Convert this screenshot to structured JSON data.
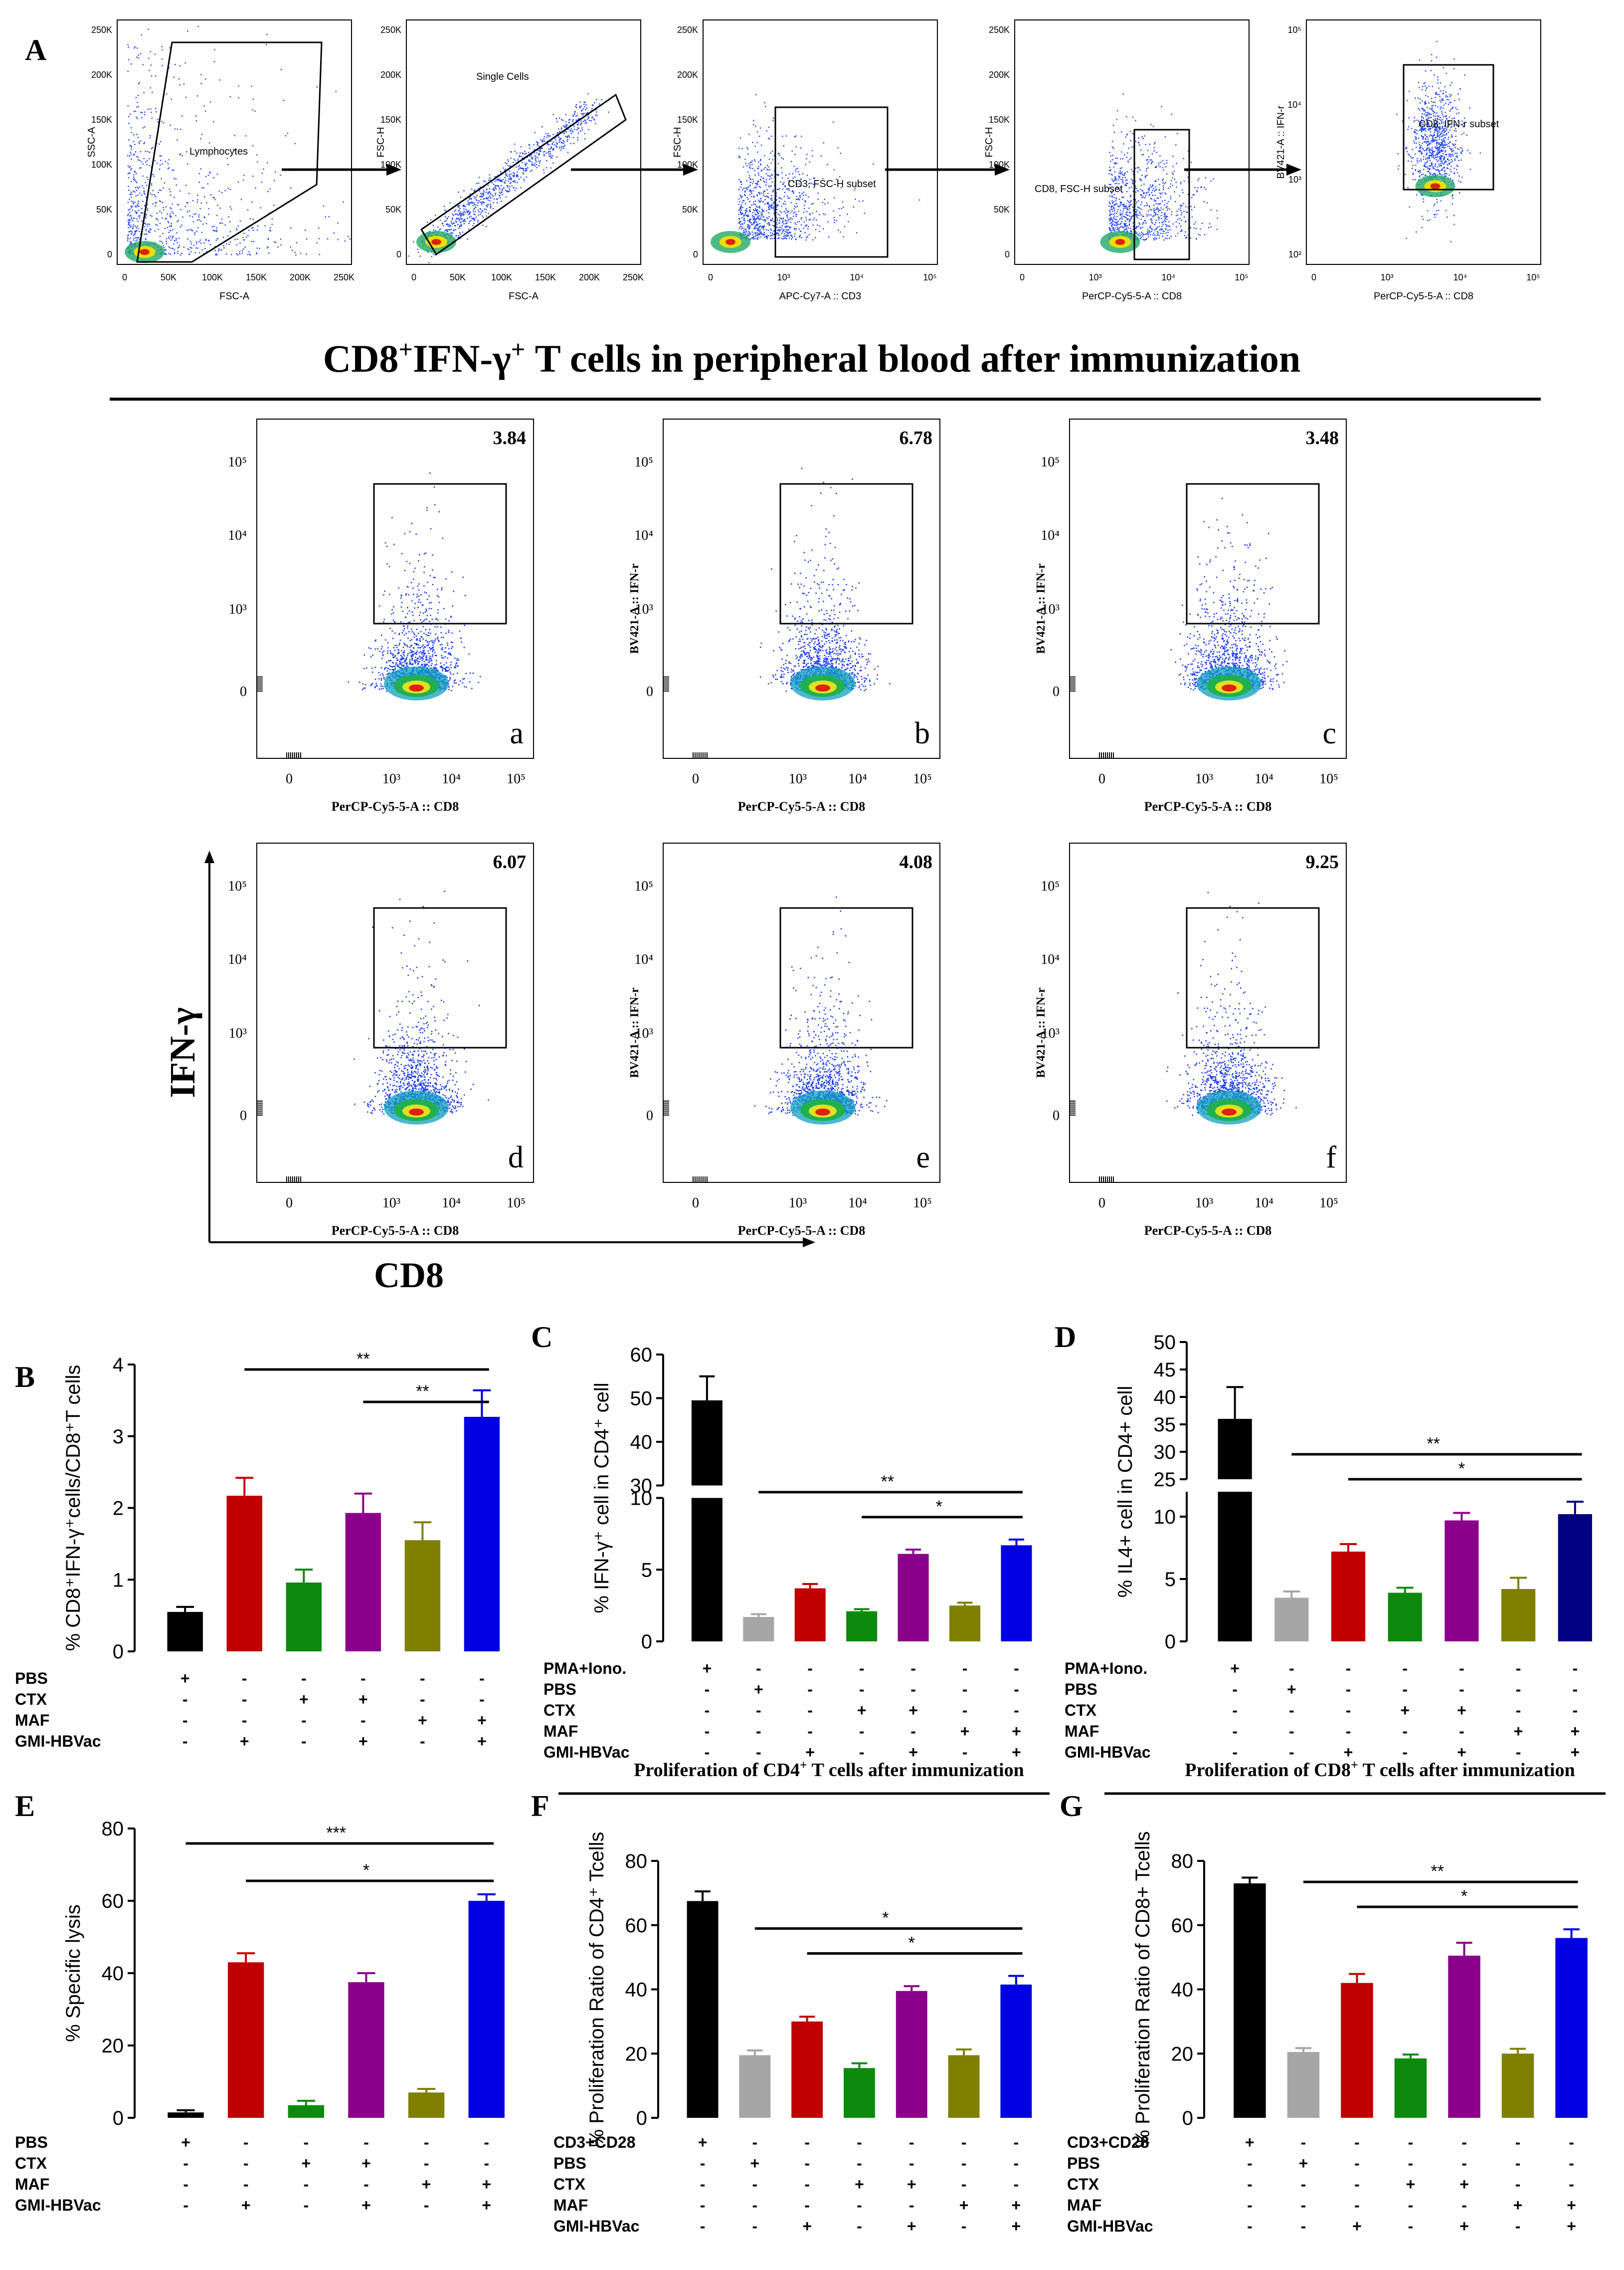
{
  "panel_letters": [
    "A",
    "B",
    "C",
    "D",
    "E",
    "F",
    "G"
  ],
  "gating": {
    "plots": [
      {
        "ylabel": "SSC-A",
        "xlabel": "FSC-A",
        "gate": "Lymphocytes",
        "yticks": [
          "250K",
          "200K",
          "150K",
          "100K",
          "50K",
          "0"
        ],
        "xticks": [
          "0",
          "50K",
          "100K",
          "150K",
          "200K",
          "250K"
        ]
      },
      {
        "ylabel": "FSC-H",
        "xlabel": "FSC-A",
        "gate": "Single Cells",
        "yticks": [
          "250K",
          "200K",
          "150K",
          "100K",
          "50K",
          "0"
        ],
        "xticks": [
          "0",
          "50K",
          "100K",
          "150K",
          "200K",
          "250K"
        ]
      },
      {
        "ylabel": "FSC-H",
        "xlabel": "APC-Cy7-A :: CD3",
        "gate": "CD3, FSC-H subset",
        "yticks": [
          "250K",
          "200K",
          "150K",
          "100K",
          "50K",
          "0"
        ],
        "xticks": [
          "0",
          "10³",
          "10⁴",
          "10⁵"
        ]
      },
      {
        "ylabel": "FSC-H",
        "xlabel": "PerCP-Cy5-5-A :: CD8",
        "gate": "CD8, FSC-H subset",
        "yticks": [
          "250K",
          "200K",
          "150K",
          "100K",
          "50K",
          "0"
        ],
        "xticks": [
          "0",
          "10³",
          "10⁴",
          "10⁵"
        ]
      },
      {
        "ylabel": "BV421-A :: IFN-r",
        "xlabel": "PerCP-Cy5-5-A :: CD8",
        "gate": "CD8, IFN-r subset",
        "yticks": [
          "10⁵",
          "10⁴",
          "10³",
          "10²"
        ],
        "xticks": [
          "0",
          "10³",
          "10⁴",
          "10⁵"
        ]
      }
    ]
  },
  "title_main": "CD8",
  "title_sup1": "+",
  "title_mid": "IFN-γ",
  "title_sup2": "+",
  "title_rest": " T cells  in peripheral blood after immunization",
  "flow": {
    "ylabel": "BV421-A :: IFN-r",
    "xlabel": "PerCP-Cy5-5-A :: CD8",
    "yticks": [
      "10⁵",
      "10⁴",
      "10³",
      "0"
    ],
    "xticks": [
      "0",
      "10³",
      "10⁴",
      "10⁵"
    ],
    "axis_y": "IFN-γ",
    "axis_x": "CD8",
    "plots": [
      {
        "letter": "a",
        "value": "3.84"
      },
      {
        "letter": "b",
        "value": "6.78"
      },
      {
        "letter": "c",
        "value": "3.48"
      },
      {
        "letter": "d",
        "value": "6.07"
      },
      {
        "letter": "e",
        "value": "4.08"
      },
      {
        "letter": "f",
        "value": "9.25"
      }
    ]
  },
  "colors": {
    "black": "#000000",
    "grey": "#a6a6a6",
    "red": "#c00000",
    "green": "#0d8a0d",
    "purple": "#8b008b",
    "olive": "#7f7f00",
    "blue": "#0000e0",
    "navy": "#000080"
  },
  "chart_data": [
    {
      "panel": "B",
      "type": "bar",
      "ylabel": "% CD8⁺IFN-γ⁺cells/CD8⁺T cells",
      "ylim": [
        0,
        4
      ],
      "yticks": [
        "0",
        "1",
        "2",
        "3",
        "4"
      ],
      "values": [
        0.55,
        2.17,
        0.96,
        1.93,
        1.55,
        3.27
      ],
      "errors": [
        0.07,
        0.25,
        0.18,
        0.27,
        0.25,
        0.37
      ],
      "colors": [
        "#000000",
        "#c00000",
        "#0d8a0d",
        "#8b008b",
        "#7f7f00",
        "#0000e0"
      ],
      "sig": [
        {
          "label": "**",
          "from": 1,
          "to": 5
        },
        {
          "label": "**",
          "from": 3,
          "to": 5
        }
      ],
      "rows": [
        {
          "label": "PBS",
          "signs": [
            "+",
            "-",
            "-",
            "-",
            "-",
            "-"
          ]
        },
        {
          "label": "CTX",
          "signs": [
            "-",
            "-",
            "+",
            "+",
            "-",
            "-"
          ]
        },
        {
          "label": "MAF",
          "signs": [
            "-",
            "-",
            "-",
            "-",
            "+",
            "+"
          ]
        },
        {
          "label": "GMI-HBVac",
          "signs": [
            "-",
            "+",
            "-",
            "+",
            "-",
            "+"
          ]
        }
      ]
    },
    {
      "panel": "C",
      "type": "bar",
      "ylabel": "% IFN-γ⁺ cell in CD4⁺ cell",
      "ylim_lower": [
        0,
        10
      ],
      "ylim_upper": [
        30,
        60
      ],
      "yticks_lower": [
        "0",
        "5",
        "10"
      ],
      "yticks_upper": [
        "30",
        "40",
        "50",
        "60"
      ],
      "values": [
        49.5,
        1.7,
        3.7,
        2.1,
        6.1,
        2.5,
        6.7
      ],
      "errors": [
        5.5,
        0.2,
        0.3,
        0.15,
        0.3,
        0.2,
        0.4
      ],
      "colors": [
        "#000000",
        "#a6a6a6",
        "#c00000",
        "#0d8a0d",
        "#8b008b",
        "#7f7f00",
        "#0000e0"
      ],
      "sig": [
        {
          "label": "**",
          "from": 1,
          "to": 6
        },
        {
          "label": "*",
          "from": 3,
          "to": 6
        }
      ],
      "rows": [
        {
          "label": "PMA+Iono.",
          "signs": [
            "+",
            "-",
            "-",
            "-",
            "-",
            "-",
            "-"
          ]
        },
        {
          "label": "PBS",
          "signs": [
            "-",
            "+",
            "-",
            "-",
            "-",
            "-",
            "-"
          ]
        },
        {
          "label": "CTX",
          "signs": [
            "-",
            "-",
            "-",
            "+",
            "+",
            "-",
            "-"
          ]
        },
        {
          "label": "MAF",
          "signs": [
            "-",
            "-",
            "-",
            "-",
            "-",
            "+",
            "+"
          ]
        },
        {
          "label": "GMI-HBVac",
          "signs": [
            "-",
            "-",
            "+",
            "-",
            "+",
            "-",
            "+"
          ]
        }
      ]
    },
    {
      "panel": "D",
      "type": "bar",
      "ylabel": "% IL4+ cell in CD4+ cell",
      "ylim_lower": [
        0,
        12
      ],
      "ylim_upper": [
        25,
        50
      ],
      "yticks_lower": [
        "0",
        "5",
        "10"
      ],
      "yticks_upper": [
        "25",
        "30",
        "35",
        "40",
        "45",
        "50"
      ],
      "values": [
        36,
        3.5,
        7.2,
        3.9,
        9.7,
        4.2,
        10.2
      ],
      "errors": [
        5.8,
        0.5,
        0.6,
        0.4,
        0.6,
        0.9,
        1.0
      ],
      "colors": [
        "#000000",
        "#a6a6a6",
        "#c00000",
        "#0d8a0d",
        "#8b008b",
        "#7f7f00",
        "#000080"
      ],
      "sig": [
        {
          "label": "**",
          "from": 1,
          "to": 6
        },
        {
          "label": "*",
          "from": 2,
          "to": 6
        }
      ],
      "rows": [
        {
          "label": "PMA+Iono.",
          "signs": [
            "+",
            "-",
            "-",
            "-",
            "-",
            "-",
            "-"
          ]
        },
        {
          "label": "PBS",
          "signs": [
            "-",
            "+",
            "-",
            "-",
            "-",
            "-",
            "-"
          ]
        },
        {
          "label": "CTX",
          "signs": [
            "-",
            "-",
            "-",
            "+",
            "+",
            "-",
            "-"
          ]
        },
        {
          "label": "MAF",
          "signs": [
            "-",
            "-",
            "-",
            "-",
            "-",
            "+",
            "+"
          ]
        },
        {
          "label": "GMI-HBVac",
          "signs": [
            "-",
            "-",
            "+",
            "-",
            "+",
            "-",
            "+"
          ]
        }
      ]
    },
    {
      "panel": "E",
      "type": "bar",
      "ylabel": "% Specific lysis",
      "ylim": [
        0,
        80
      ],
      "yticks": [
        "0",
        "20",
        "40",
        "60",
        "80"
      ],
      "values": [
        1.5,
        43,
        3.5,
        37.5,
        7,
        60
      ],
      "errors": [
        0.6,
        2.5,
        1.2,
        2.5,
        1.0,
        1.8
      ],
      "colors": [
        "#000000",
        "#c00000",
        "#0d8a0d",
        "#8b008b",
        "#7f7f00",
        "#0000e0"
      ],
      "sig": [
        {
          "label": "***",
          "from": 0,
          "to": 5
        },
        {
          "label": "*",
          "from": 1,
          "to": 5
        }
      ],
      "rows": [
        {
          "label": "PBS",
          "signs": [
            "+",
            "-",
            "-",
            "-",
            "-",
            "-"
          ]
        },
        {
          "label": "CTX",
          "signs": [
            "-",
            "-",
            "+",
            "+",
            "-",
            "-"
          ]
        },
        {
          "label": "MAF",
          "signs": [
            "-",
            "-",
            "-",
            "-",
            "+",
            "+"
          ]
        },
        {
          "label": "GMI-HBVac",
          "signs": [
            "-",
            "+",
            "-",
            "+",
            "-",
            "+"
          ]
        }
      ]
    },
    {
      "panel": "F",
      "type": "bar",
      "title": "Proliferation of CD4",
      "title_sup": "+",
      "title_rest": " T cells after immunization",
      "ylabel": "% Proliferation Ratio of CD4⁺ Tcells",
      "ylim": [
        0,
        80
      ],
      "yticks": [
        "0",
        "20",
        "40",
        "60",
        "80"
      ],
      "values": [
        67.5,
        19.5,
        30,
        15.5,
        39.5,
        19.5,
        41.5
      ],
      "errors": [
        3,
        1.5,
        1.5,
        1.5,
        1.5,
        1.8,
        2.7
      ],
      "colors": [
        "#000000",
        "#a6a6a6",
        "#c00000",
        "#0d8a0d",
        "#8b008b",
        "#7f7f00",
        "#0000e0"
      ],
      "sig": [
        {
          "label": "*",
          "from": 1,
          "to": 6
        },
        {
          "label": "*",
          "from": 2,
          "to": 6
        }
      ],
      "rows": [
        {
          "label": "CD3+CD28",
          "signs": [
            "+",
            "-",
            "-",
            "-",
            "-",
            "-",
            "-"
          ]
        },
        {
          "label": "PBS",
          "signs": [
            "-",
            "+",
            "-",
            "-",
            "-",
            "-",
            "-"
          ]
        },
        {
          "label": "CTX",
          "signs": [
            "-",
            "-",
            "-",
            "+",
            "+",
            "-",
            "-"
          ]
        },
        {
          "label": "MAF",
          "signs": [
            "-",
            "-",
            "-",
            "-",
            "-",
            "+",
            "+"
          ]
        },
        {
          "label": "GMI-HBVac",
          "signs": [
            "-",
            "-",
            "+",
            "-",
            "+",
            "-",
            "+"
          ]
        }
      ]
    },
    {
      "panel": "G",
      "type": "bar",
      "title": "Proliferation of CD8",
      "title_sup": "+",
      "title_rest": " T cells after immunization",
      "ylabel": "% Proliferation Ratio of CD8+ Tcells",
      "ylim": [
        0,
        80
      ],
      "yticks": [
        "0",
        "20",
        "40",
        "60",
        "80"
      ],
      "values": [
        73,
        20.5,
        42,
        18.5,
        50.5,
        20,
        56
      ],
      "errors": [
        1.8,
        1.2,
        2.8,
        1.2,
        4,
        1.5,
        2.7
      ],
      "colors": [
        "#000000",
        "#a6a6a6",
        "#c00000",
        "#0d8a0d",
        "#8b008b",
        "#7f7f00",
        "#0000e0"
      ],
      "sig": [
        {
          "label": "**",
          "from": 1,
          "to": 6
        },
        {
          "label": "*",
          "from": 2,
          "to": 6
        }
      ],
      "rows": [
        {
          "label": "CD3+CD28",
          "signs": [
            "+",
            "-",
            "-",
            "-",
            "-",
            "-",
            "-"
          ]
        },
        {
          "label": "PBS",
          "signs": [
            "-",
            "+",
            "-",
            "-",
            "-",
            "-",
            "-"
          ]
        },
        {
          "label": "CTX",
          "signs": [
            "-",
            "-",
            "-",
            "+",
            "+",
            "-",
            "-"
          ]
        },
        {
          "label": "MAF",
          "signs": [
            "-",
            "-",
            "-",
            "-",
            "-",
            "+",
            "+"
          ]
        },
        {
          "label": "GMI-HBVac",
          "signs": [
            "-",
            "-",
            "+",
            "-",
            "+",
            "-",
            "+"
          ]
        }
      ]
    }
  ]
}
